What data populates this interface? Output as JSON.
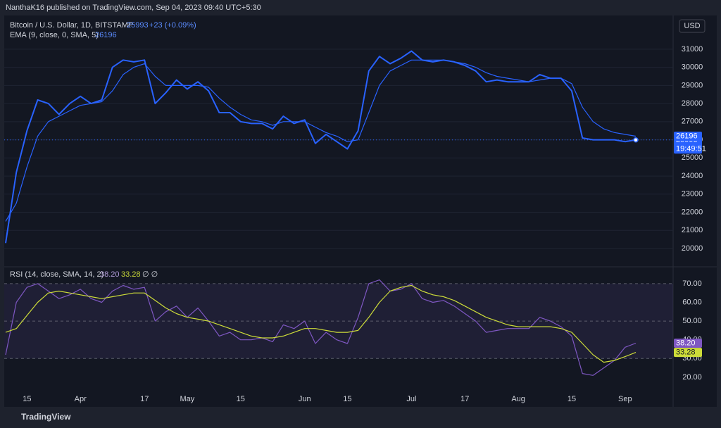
{
  "header": {
    "publisher": "NanthaK16 published on TradingView.com, Sep 04, 2023 09:40 UTC+5:30",
    "currency": "USD",
    "footer_brand": "TradingView"
  },
  "chart_data": [
    {
      "type": "line",
      "title": "Bitcoin / U.S. Dollar, 1D, BITSTAMP",
      "change": "+23 (+0.09%)",
      "countdown": "19:49:51",
      "categories": [
        null,
        null,
        "15",
        null,
        null,
        null,
        null,
        "Apr",
        null,
        null,
        null,
        null,
        null,
        "17",
        null,
        null,
        null,
        "May",
        null,
        null,
        null,
        null,
        "15",
        null,
        null,
        null,
        null,
        null,
        "Jun",
        null,
        null,
        null,
        "15",
        null,
        null,
        null,
        null,
        null,
        "Jul",
        null,
        null,
        null,
        null,
        "17",
        null,
        null,
        null,
        null,
        "Aug",
        null,
        null,
        null,
        null,
        "15",
        null,
        null,
        null,
        null,
        "Sep",
        null
      ],
      "series": [
        {
          "name": "Bitcoin / U.S. Dollar",
          "color": "#2962ff",
          "values": [
            20300,
            24200,
            26500,
            28200,
            28000,
            27400,
            28000,
            28400,
            28000,
            28200,
            30000,
            30400,
            30300,
            30400,
            28000,
            28600,
            29300,
            28800,
            29200,
            28700,
            27500,
            27500,
            27000,
            26900,
            26900,
            26600,
            27300,
            26900,
            27100,
            25800,
            26300,
            25900,
            25500,
            26500,
            29800,
            30600,
            30200,
            30500,
            30900,
            30400,
            30300,
            30400,
            30300,
            30100,
            29800,
            29200,
            29300,
            29200,
            29200,
            29200,
            29600,
            29400,
            29400,
            28700,
            26100,
            26000,
            26000,
            26000,
            25900,
            25993
          ]
        },
        {
          "name": "EMA (9, close, 0, SMA, 5)",
          "color": "#2962ff",
          "values": [
            21500,
            22500,
            24500,
            26200,
            27000,
            27300,
            27600,
            27900,
            28000,
            28100,
            28700,
            29600,
            30000,
            30200,
            29500,
            29000,
            29000,
            29000,
            29000,
            28900,
            28300,
            27800,
            27400,
            27100,
            27000,
            26800,
            27000,
            27000,
            27000,
            26700,
            26400,
            26200,
            25900,
            26000,
            27500,
            29000,
            29800,
            30100,
            30400,
            30400,
            30400,
            30400,
            30300,
            30200,
            30000,
            29700,
            29500,
            29400,
            29300,
            29200,
            29300,
            29400,
            29400,
            29100,
            27800,
            27000,
            26600,
            26400,
            26300,
            26196
          ]
        }
      ],
      "ylim": [
        19030,
        32860
      ],
      "yticks": [
        20000,
        21000,
        22000,
        23000,
        24000,
        25000,
        26000,
        27000,
        28000,
        29000,
        30000,
        31000
      ],
      "grid": true
    },
    {
      "type": "line",
      "title": "RSI (14, close, SMA, 14, 2)",
      "extra": "∅ ∅",
      "series": [
        {
          "name": "RSI",
          "color": "#7e57c2",
          "last_label": "38.20",
          "values": [
            32,
            60,
            68,
            70,
            66,
            62,
            64,
            67,
            62,
            60,
            66,
            69,
            67,
            68,
            50,
            55,
            58,
            52,
            57,
            50,
            42,
            44,
            40,
            40,
            41,
            39,
            48,
            46,
            50,
            38,
            44,
            40,
            38,
            52,
            70,
            72,
            66,
            67,
            70,
            62,
            60,
            61,
            58,
            54,
            50,
            44,
            45,
            46,
            46,
            46,
            52,
            50,
            47,
            42,
            22,
            21,
            25,
            29,
            36,
            38.2
          ]
        },
        {
          "name": "RSI SMA",
          "color": "#cddc39",
          "last_label": "33.28",
          "values": [
            44,
            46,
            53,
            60,
            65,
            66,
            65,
            64,
            63,
            62,
            63,
            64,
            65,
            65,
            61,
            57,
            54,
            52,
            51,
            50,
            48,
            46,
            44,
            42,
            41,
            41,
            42,
            44,
            46,
            46,
            45,
            44,
            44,
            45,
            52,
            60,
            66,
            68,
            69,
            66,
            64,
            63,
            61,
            58,
            55,
            52,
            50,
            48,
            47,
            47,
            47,
            47,
            46,
            44,
            38,
            32,
            28,
            29,
            31,
            33.28
          ]
        }
      ],
      "ylim": [
        11.7,
        78.6
      ],
      "yticks": [
        {
          "value": 20,
          "label": "20.00"
        },
        {
          "value": 30,
          "label": "30.00"
        },
        {
          "value": 40,
          "label": "40.00"
        },
        {
          "value": 50,
          "label": "50.00"
        },
        {
          "value": 60,
          "label": "60.00"
        },
        {
          "value": 70,
          "label": "70.00"
        }
      ],
      "band": [
        30,
        70
      ]
    }
  ]
}
